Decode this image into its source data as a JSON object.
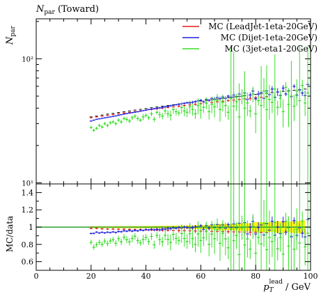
{
  "chart_data": {
    "type": "scatter",
    "title": "N_par (Toward)",
    "title_main": "N",
    "title_sub": "par",
    "title_rest": " (Toward)",
    "ylabel_main": "N",
    "ylabel_sub": "par",
    "ratio_ylabel": "MC/data",
    "xlabel_main": "p",
    "xlabel_sub": "T",
    "xlabel_sup": "lead",
    "xlabel_unit": " / GeV",
    "xlim": [
      0,
      100
    ],
    "ylim": [
      9.8,
      210
    ],
    "ylog": true,
    "ratio_ylim": [
      0.5,
      1.5
    ],
    "x_ticks": [
      {
        "v": 0,
        "label": "0"
      },
      {
        "v": 20,
        "label": "20"
      },
      {
        "v": 40,
        "label": "40"
      },
      {
        "v": 60,
        "label": "60"
      },
      {
        "v": 80,
        "label": "80"
      },
      {
        "v": 100,
        "label": "100"
      }
    ],
    "y_ticks": [
      {
        "v": 10,
        "label": "10¹"
      },
      {
        "v": 100,
        "label": "10²"
      }
    ],
    "ratio_ticks": [
      {
        "v": 0.6,
        "label": "0.6"
      },
      {
        "v": 0.8,
        "label": "0.8"
      },
      {
        "v": 1.0,
        "label": "1"
      },
      {
        "v": 1.2,
        "label": "1.2"
      },
      {
        "v": 1.4,
        "label": "1.4"
      }
    ],
    "legend_position": "top-right",
    "series": [
      {
        "name": "MC (LeadJet-1eta-20GeV)",
        "color": "#e41a1c",
        "x": [
          20,
          22,
          24,
          26,
          28,
          30,
          32,
          34,
          36,
          38,
          40,
          42,
          44,
          46,
          48,
          50,
          52,
          54,
          56,
          58,
          60,
          62,
          64,
          66,
          68,
          70,
          72,
          74,
          76,
          78,
          80,
          82,
          84
        ],
        "y": [
          33.5,
          34.0,
          34.5,
          35.0,
          35.5,
          36.0,
          36.5,
          37.0,
          37.5,
          38.0,
          38.5,
          39.0,
          39.5,
          40.0,
          40.5,
          41.0,
          41.5,
          42.0,
          42.5,
          43.0,
          43.5,
          44.0,
          44.5,
          45.0,
          45.5,
          46.0,
          46.5,
          47.0,
          47.5,
          48.0,
          48.5,
          49.0,
          49.5
        ]
      },
      {
        "name": "MC (Dijet-1eta-20GeV)",
        "color": "#1f1fdd",
        "x": [
          20,
          21,
          22,
          23,
          24,
          25,
          26,
          27,
          28,
          29,
          30,
          31,
          32,
          33,
          34,
          35,
          36,
          37,
          38,
          39,
          40,
          41,
          42,
          43,
          44,
          45,
          46,
          47,
          48,
          49,
          50,
          51,
          52,
          53,
          54,
          55,
          56,
          57,
          58,
          59,
          60,
          61,
          62,
          63,
          64,
          65,
          66,
          67,
          68,
          69,
          70,
          71,
          72,
          73,
          74,
          75,
          76,
          77,
          78,
          79,
          80,
          81,
          82,
          83,
          84,
          85,
          86,
          87,
          88,
          89,
          90,
          91,
          92,
          93,
          94,
          95,
          96,
          97,
          98,
          99
        ],
        "y": [
          31.5,
          32.0,
          32.5,
          32.8,
          33.1,
          33.4,
          33.7,
          34.0,
          34.3,
          34.6,
          35.0,
          35.4,
          35.8,
          36.2,
          36.5,
          36.8,
          37.1,
          37.4,
          37.8,
          38.2,
          38.6,
          39.0,
          39.3,
          39.6,
          39.9,
          40.2,
          40.6,
          41.0,
          41.4,
          41.8,
          42.2,
          42.6,
          43.0,
          43.4,
          43.8,
          44.2,
          44.0,
          44.6,
          45.2,
          45.8,
          46.4,
          45.0,
          47.0,
          46.2,
          48.0,
          47.2,
          48.8,
          47.6,
          49.2,
          48.0,
          50.0,
          49.0,
          51.0,
          49.5,
          52.0,
          50.0,
          53.0,
          47.0,
          51.0,
          55.0,
          47.5,
          52.0,
          53.5,
          48.0,
          55.0,
          51.5,
          57.0,
          49.0,
          54.0,
          50.5,
          58.0,
          52.0,
          55.0,
          49.5,
          60.0,
          51.0,
          56.0,
          53.0,
          50.5,
          62.0
        ]
      },
      {
        "name": "MC (3jet-eta1-20GeV)",
        "color": "#33dd22",
        "x": [
          20,
          21,
          22,
          23,
          24,
          25,
          26,
          27,
          28,
          29,
          30,
          31,
          32,
          33,
          34,
          35,
          36,
          37,
          38,
          39,
          40,
          41,
          42,
          43,
          44,
          45,
          46,
          47,
          48,
          49,
          50,
          51,
          52,
          53,
          54,
          55,
          56,
          57,
          58,
          59,
          60,
          61,
          62,
          63,
          64,
          65,
          66,
          67,
          68,
          69,
          70,
          71,
          72,
          73,
          74,
          75,
          76,
          77,
          78,
          79,
          80,
          81,
          82,
          83,
          84,
          85,
          86,
          87,
          88,
          89,
          90,
          91,
          92,
          93,
          94,
          95,
          96,
          97,
          98,
          99
        ],
        "y": [
          28.0,
          26.5,
          27.5,
          29.0,
          28.2,
          30.0,
          29.0,
          30.5,
          31.0,
          30.0,
          32.0,
          31.0,
          33.0,
          32.5,
          31.5,
          33.5,
          34.5,
          33.0,
          32.0,
          34.0,
          35.0,
          33.5,
          36.0,
          32.5,
          37.0,
          35.5,
          34.5,
          38.0,
          36.0,
          35.0,
          39.0,
          37.5,
          36.5,
          40.5,
          38.0,
          37.0,
          41.0,
          39.0,
          36.0,
          42.0,
          38.5,
          40.5,
          44.0,
          37.5,
          43.0,
          41.0,
          46.0,
          39.0,
          44.5,
          42.0,
          37.0,
          48.0,
          41.5,
          45.0,
          34.0,
          50.0,
          40.0,
          44.0,
          38.0,
          52.0,
          36.0,
          46.0,
          42.0,
          55.0,
          39.0,
          47.0,
          44.5,
          57.0,
          40.5,
          48.0,
          37.5,
          59.0,
          43.0,
          50.0,
          41.5,
          55.0,
          46.0,
          61.0,
          44.0,
          53.0
        ]
      }
    ],
    "data": {
      "x": [
        20,
        22,
        24,
        26,
        28,
        30,
        32,
        34,
        36,
        38,
        40,
        42,
        44,
        46,
        48,
        50,
        52,
        54,
        56,
        58,
        60,
        62,
        64,
        66,
        68,
        70,
        72,
        74,
        76,
        78,
        80,
        82,
        84,
        86,
        88,
        90,
        92,
        94,
        96,
        98
      ],
      "y": [
        34.0,
        34.5,
        35.2,
        35.8,
        36.3,
        36.9,
        37.4,
        38.0,
        38.6,
        39.1,
        39.7,
        40.3,
        40.9,
        41.5,
        42.0,
        42.6,
        43.2,
        43.8,
        44.4,
        45.0,
        45.6,
        46.2,
        46.8,
        47.4,
        48.0,
        48.6,
        49.2,
        49.8,
        50.4,
        51.0,
        51.6,
        52.2,
        52.8,
        53.4,
        54.0,
        54.6,
        55.2,
        55.8,
        56.4,
        57.0
      ]
    }
  }
}
